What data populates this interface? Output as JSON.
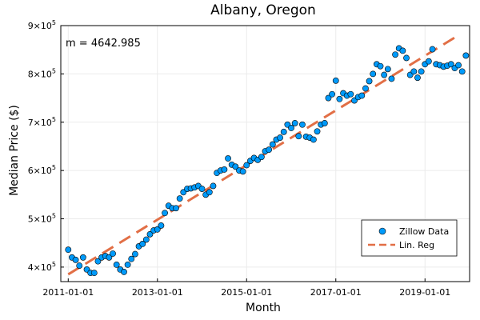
{
  "chart_data": {
    "type": "scatter",
    "title": "Albany, Oregon",
    "xlabel": "Month",
    "ylabel": "Median Price ($)",
    "annotation": "m = 4642.985",
    "x_ticks": [
      "2011-01-01",
      "2013-01-01",
      "2015-01-01",
      "2017-01-01",
      "2019-01-01"
    ],
    "y_ticks": [
      {
        "value": 400000,
        "base": "4×10",
        "exp": "5"
      },
      {
        "value": 500000,
        "base": "5×10",
        "exp": "5"
      },
      {
        "value": 600000,
        "base": "6×10",
        "exp": "5"
      },
      {
        "value": 700000,
        "base": "7×10",
        "exp": "5"
      },
      {
        "value": 800000,
        "base": "8×10",
        "exp": "5"
      },
      {
        "value": 900000,
        "base": "9×10",
        "exp": "5"
      }
    ],
    "xlim": [
      -2,
      108
    ],
    "ylim": [
      370000,
      900000
    ],
    "legend": {
      "position": "bottom-right",
      "entries": [
        "Zillow Data",
        "Lin. Reg"
      ]
    },
    "colors": {
      "points": "#009AFA",
      "line": "#E26F46",
      "grid": "#EBEBEB"
    },
    "series": [
      {
        "name": "Zillow Data",
        "x": [
          0,
          1,
          2,
          3,
          4,
          5,
          6,
          7,
          8,
          9,
          10,
          11,
          12,
          13,
          14,
          15,
          16,
          17,
          18,
          19,
          20,
          21,
          22,
          23,
          24,
          25,
          26,
          27,
          28,
          29,
          30,
          31,
          32,
          33,
          34,
          35,
          36,
          37,
          38,
          39,
          40,
          41,
          42,
          43,
          44,
          45,
          46,
          47,
          48,
          49,
          50,
          51,
          52,
          53,
          54,
          55,
          56,
          57,
          58,
          59,
          60,
          61,
          62,
          63,
          64,
          65,
          66,
          67,
          68,
          69,
          70,
          71,
          72,
          73,
          74,
          75,
          76,
          77,
          78,
          79,
          80,
          81,
          82,
          83,
          84,
          85,
          86,
          87,
          88,
          89,
          90,
          91,
          92,
          93,
          94,
          95,
          96,
          97,
          98,
          99,
          100,
          101,
          102,
          103
        ],
        "y": [
          436000,
          420000,
          415000,
          403000,
          420000,
          395000,
          388000,
          388000,
          412000,
          420000,
          423000,
          420000,
          428000,
          405000,
          395000,
          390000,
          405000,
          417000,
          427000,
          443000,
          448000,
          457000,
          468000,
          476000,
          478000,
          486000,
          512000,
          527000,
          522000,
          522000,
          542000,
          555000,
          562000,
          563000,
          565000,
          568000,
          562000,
          550000,
          555000,
          568000,
          595000,
          600000,
          602000,
          625000,
          612000,
          608000,
          600000,
          598000,
          611000,
          620000,
          626000,
          622000,
          628000,
          640000,
          643000,
          654000,
          664000,
          668000,
          680000,
          695000,
          688000,
          698000,
          671000,
          695000,
          670000,
          668000,
          664000,
          681000,
          695000,
          698000,
          750000,
          758000,
          786000,
          748000,
          760000,
          755000,
          758000,
          745000,
          752000,
          755000,
          770000,
          785000,
          800000,
          820000,
          816000,
          798000,
          810000,
          790000,
          840000,
          853000,
          848000,
          833000,
          798000,
          805000,
          792000,
          805000,
          820000,
          826000,
          851000,
          820000,
          818000,
          815000,
          817000,
          820000
        ],
        "extra_x": [
          104,
          105,
          106,
          107
        ],
        "extra_y": [
          812000,
          818000,
          805000,
          838000
        ]
      },
      {
        "name": "Lin. Reg",
        "x": [
          0,
          105
        ],
        "y": [
          385000,
          880000
        ]
      }
    ]
  }
}
